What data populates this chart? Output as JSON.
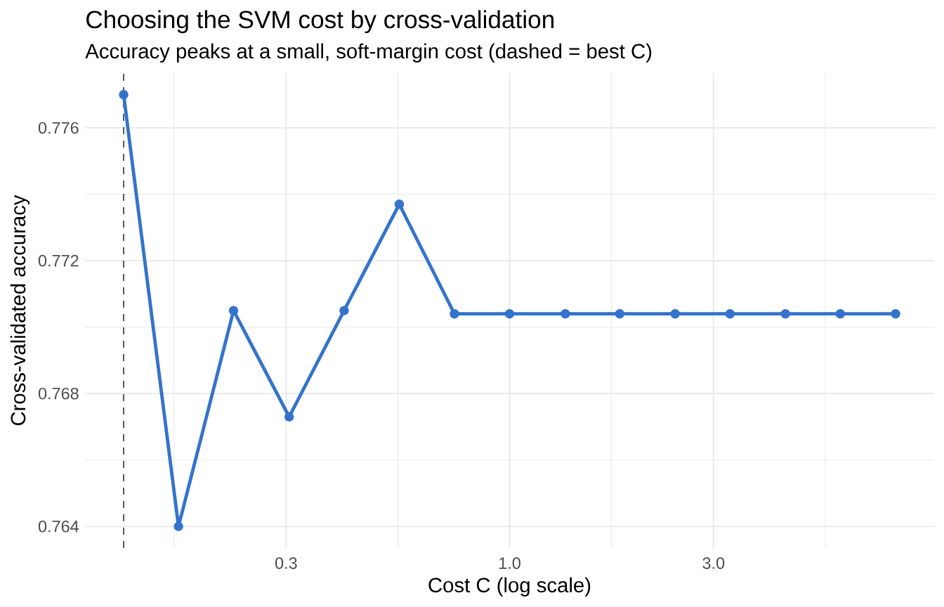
{
  "chart_data": {
    "type": "line",
    "title": "Choosing the SVM cost by cross-validation",
    "subtitle": "Accuracy peaks at a small, soft-margin cost (dashed = best C)",
    "xlabel": "Cost C (log scale)",
    "ylabel": "Cross-validated accuracy",
    "x": [
      0.125,
      0.168,
      0.226,
      0.305,
      0.41,
      0.552,
      0.743,
      1,
      1.35,
      1.81,
      2.44,
      3.28,
      4.42,
      5.94,
      8
    ],
    "series": [
      {
        "color": "#3373cc",
        "values": [
          0.777,
          0.764,
          0.7705,
          0.7673,
          0.7705,
          0.7737,
          0.7704,
          0.7704,
          0.7704,
          0.7704,
          0.7704,
          0.7704,
          0.7704,
          0.7704,
          0.7704
        ]
      }
    ],
    "log": "x",
    "xlim": [
      0.1015,
      9.85
    ],
    "ylim": [
      0.76335,
      0.77765
    ],
    "xticks": [
      {
        "value": 0.164,
        "label": null
      },
      0.3,
      {
        "value": 0.548,
        "label": null
      },
      {
        "value": 1,
        "label": "1.0"
      },
      {
        "value": 1.73,
        "label": null
      },
      {
        "value": 3,
        "label": "3.0"
      },
      {
        "value": 5.48,
        "label": null
      }
    ],
    "yticks": [
      0.764,
      {
        "value": 0.766,
        "label": null
      },
      0.768,
      {
        "value": 0.77,
        "label": null
      },
      0.772,
      {
        "value": 0.774,
        "label": null
      },
      0.776
    ],
    "grid": true,
    "marker": "circle",
    "ref_lines": [
      {
        "axis": "x",
        "value": 0.125,
        "color": "#595959",
        "line_style": "dashed"
      }
    ]
  }
}
